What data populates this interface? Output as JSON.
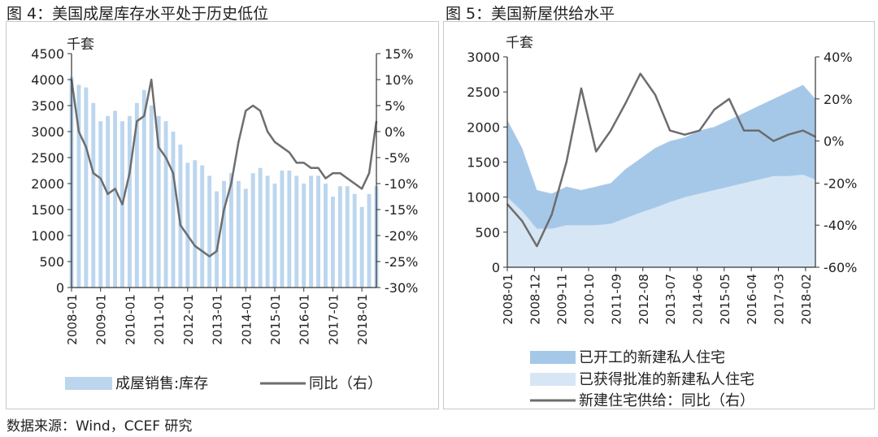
{
  "figure4": {
    "title": "图 4：美国成屋库存水平处于历史低位",
    "unit": "千套",
    "left_ticks": [
      "4500",
      "4000",
      "3500",
      "3000",
      "2500",
      "2000",
      "1500",
      "1000",
      "500",
      "0"
    ],
    "right_ticks": [
      "15%",
      "10%",
      "5%",
      "0%",
      "-5%",
      "-10%",
      "-15%",
      "-20%",
      "-25%",
      "-30%"
    ],
    "x_labels": [
      "2008-01",
      "2009-01",
      "2010-01",
      "2011-01",
      "2012-01",
      "2013-01",
      "2014-01",
      "2015-01",
      "2016-01",
      "2017-01",
      "2018-01"
    ],
    "legend": [
      "成屋销售:库存",
      "同比（右）"
    ],
    "colors": {
      "bar": "#bcd6ee",
      "line": "#6d6d6d"
    },
    "chart_data": {
      "type": "bar",
      "x": [
        "2008-01",
        "2008-04",
        "2008-07",
        "2008-10",
        "2009-01",
        "2009-04",
        "2009-07",
        "2009-10",
        "2010-01",
        "2010-04",
        "2010-07",
        "2010-10",
        "2011-01",
        "2011-04",
        "2011-07",
        "2011-10",
        "2012-01",
        "2012-04",
        "2012-07",
        "2012-10",
        "2013-01",
        "2013-04",
        "2013-07",
        "2013-10",
        "2014-01",
        "2014-04",
        "2014-07",
        "2014-10",
        "2015-01",
        "2015-04",
        "2015-07",
        "2015-10",
        "2016-01",
        "2016-04",
        "2016-07",
        "2016-10",
        "2017-01",
        "2017-04",
        "2017-07",
        "2017-10",
        "2018-01",
        "2018-04",
        "2018-07"
      ],
      "series": [
        {
          "name": "成屋销售:库存",
          "axis": "left",
          "values": [
            4050,
            3900,
            3850,
            3550,
            3200,
            3300,
            3400,
            3200,
            3300,
            3550,
            3800,
            3500,
            3300,
            3200,
            3000,
            2750,
            2400,
            2450,
            2350,
            2150,
            1850,
            2050,
            2200,
            2050,
            1900,
            2200,
            2300,
            2150,
            2000,
            2250,
            2250,
            2150,
            2000,
            2150,
            2150,
            2000,
            1750,
            1950,
            1950,
            1800,
            1550,
            1800,
            1950
          ]
        },
        {
          "name": "同比（右）",
          "axis": "right",
          "values": [
            10,
            0,
            -3,
            -8,
            -9,
            -12,
            -11,
            -14,
            -8,
            2,
            3,
            10,
            -3,
            -5,
            -8,
            -18,
            -20,
            -22,
            -23,
            -24,
            -23,
            -15,
            -10,
            -2,
            4,
            5,
            4,
            0,
            -2,
            -3,
            -4,
            -6,
            -6,
            -7,
            -7,
            -9,
            -8,
            -8,
            -9,
            -10,
            -11,
            -8,
            2
          ]
        }
      ],
      "ylim_left": [
        0,
        4500
      ],
      "ylim_right": [
        -30,
        15
      ]
    }
  },
  "figure5": {
    "title": "图 5：美国新屋供给水平",
    "unit": "千套",
    "left_ticks": [
      "3000",
      "2500",
      "2000",
      "1500",
      "1000",
      "500",
      "0"
    ],
    "right_ticks": [
      "40%",
      "20%",
      "0%",
      "-20%",
      "-40%",
      "-60%"
    ],
    "x_labels": [
      "2008-01",
      "2008-12",
      "2009-11",
      "2010-10",
      "2011-09",
      "2012-08",
      "2013-07",
      "2014-06",
      "2015-05",
      "2016-04",
      "2017-03",
      "2018-02"
    ],
    "legend": [
      "已开工的新建私人住宅",
      "已获得批准的新建私人住宅",
      "新建住宅供给：同比（右）"
    ],
    "colors": {
      "started": "#a6c8e8",
      "approved": "#d6e6f4",
      "line": "#6d6d6d"
    },
    "chart_data": {
      "type": "area",
      "x": [
        "2008-01",
        "2008-07",
        "2009-01",
        "2009-07",
        "2010-01",
        "2010-07",
        "2011-01",
        "2011-07",
        "2012-01",
        "2012-07",
        "2013-01",
        "2013-07",
        "2014-01",
        "2014-07",
        "2015-01",
        "2015-07",
        "2016-01",
        "2016-07",
        "2017-01",
        "2017-07",
        "2018-01",
        "2018-06"
      ],
      "series": [
        {
          "name": "已开工的新建私人住宅",
          "axis": "left",
          "values": [
            2100,
            1700,
            1100,
            1050,
            1150,
            1100,
            1150,
            1200,
            1400,
            1550,
            1700,
            1800,
            1850,
            1950,
            2000,
            2100,
            2200,
            2300,
            2400,
            2500,
            2600,
            2400
          ]
        },
        {
          "name": "已获得批准的新建私人住宅",
          "axis": "left",
          "values": [
            1000,
            800,
            550,
            550,
            600,
            600,
            600,
            620,
            700,
            780,
            850,
            930,
            1000,
            1050,
            1100,
            1150,
            1200,
            1250,
            1300,
            1300,
            1320,
            1250
          ]
        },
        {
          "name": "新建住宅供给：同比（右）",
          "axis": "right",
          "values": [
            -30,
            -38,
            -50,
            -35,
            -10,
            25,
            -5,
            5,
            18,
            32,
            22,
            5,
            3,
            5,
            15,
            20,
            5,
            5,
            0,
            3,
            5,
            2
          ]
        }
      ],
      "ylim_left": [
        0,
        3000
      ],
      "ylim_right": [
        -60,
        40
      ]
    }
  },
  "source": "数据来源：Wind，CCEF 研究"
}
